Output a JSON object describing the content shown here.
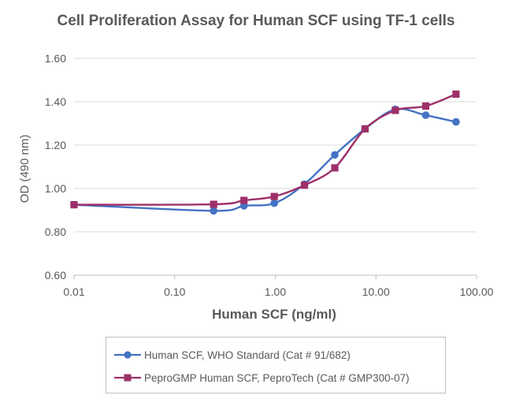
{
  "chart_data": {
    "type": "line",
    "title": "Cell Proliferation Assay for Human SCF using TF-1 cells",
    "xlabel": "Human SCF (ng/ml)",
    "ylabel": "OD (490 nm)",
    "xscale": "log",
    "xlim": [
      0.01,
      100
    ],
    "ylim": [
      0.6,
      1.6
    ],
    "xticks": [
      "0.01",
      "0.10",
      "1.00",
      "10.00",
      "100.00"
    ],
    "yticks": [
      "0.60",
      "0.80",
      "1.00",
      "1.20",
      "1.40",
      "1.60"
    ],
    "grid": "horizontal",
    "legend_position": "bottom",
    "series": [
      {
        "name": "Human SCF, WHO Standard (Cat # 91/682)",
        "color": "#4472c4",
        "marker": "circle",
        "x": [
          0.01,
          0.244,
          0.488,
          0.977,
          1.95,
          3.9,
          7.8,
          15.6,
          31.25,
          62.5
        ],
        "y": [
          0.925,
          0.897,
          0.92,
          0.932,
          1.02,
          1.155,
          1.275,
          1.365,
          1.338,
          1.307
        ]
      },
      {
        "name": "PeproGMP Human SCF, PeproTech (Cat # GMP300-07)",
        "color": "#9e3069",
        "marker": "square",
        "x": [
          0.01,
          0.244,
          0.488,
          0.977,
          1.95,
          3.9,
          7.8,
          15.6,
          31.25,
          62.5
        ],
        "y": [
          0.925,
          0.927,
          0.945,
          0.963,
          1.015,
          1.095,
          1.275,
          1.36,
          1.38,
          1.435
        ]
      }
    ]
  }
}
